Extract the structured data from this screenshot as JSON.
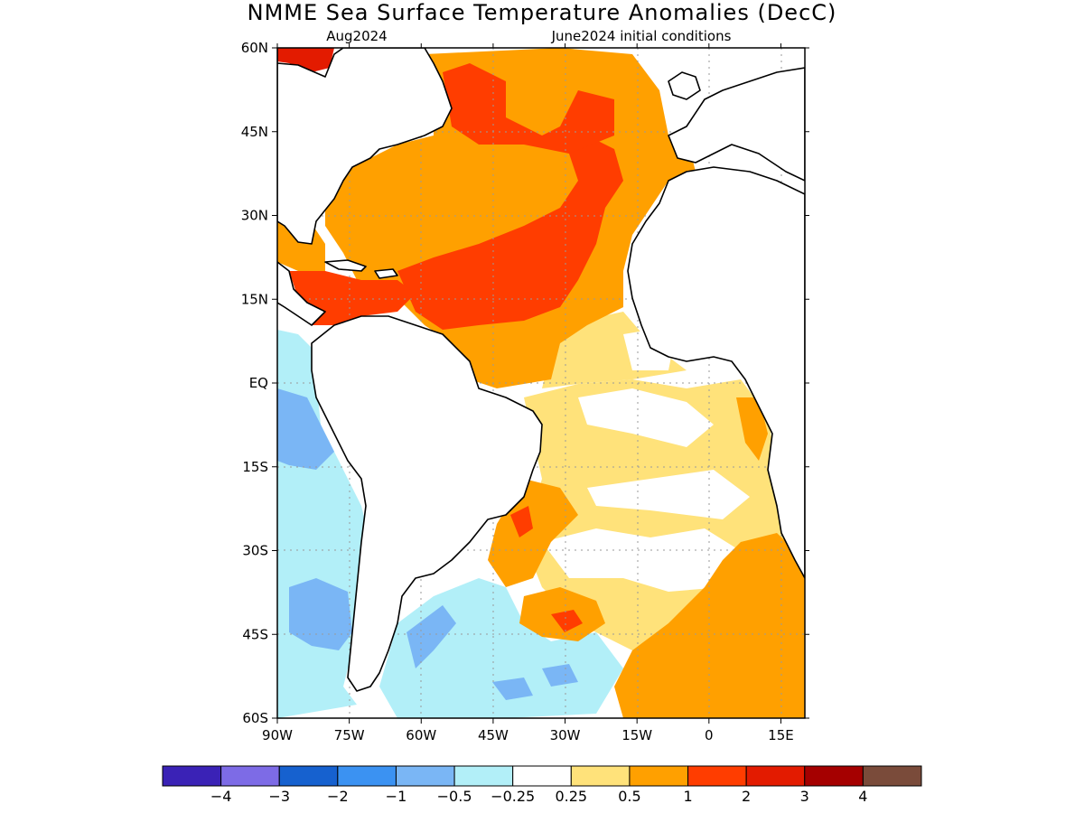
{
  "title": "NMME Sea Surface Temperature Anomalies (DecC)",
  "valid_label": "Aug2024",
  "init_label": "June2024 initial conditions",
  "axes": {
    "lon_labels": [
      "90W",
      "75W",
      "60W",
      "45W",
      "30W",
      "15W",
      "0",
      "15E"
    ],
    "lat_labels": [
      "60N",
      "45N",
      "30N",
      "15N",
      "EQ",
      "15S",
      "30S",
      "45S",
      "60S"
    ],
    "lon_range": [
      -90,
      20
    ],
    "lat_range": [
      -60,
      60
    ],
    "grid": true
  },
  "legend": {
    "colors": [
      "#3a22b6",
      "#7d6be6",
      "#1661cf",
      "#3b92f2",
      "#7ab6f5",
      "#b2eff8",
      "#ffffff",
      "#ffe27a",
      "#ffa000",
      "#ff3d00",
      "#e31b00",
      "#a50000",
      "#7a4b3a"
    ],
    "labels": [
      "−4",
      "−3",
      "−2",
      "−1",
      "−0.5",
      "−0.25",
      "0.25",
      "0.5",
      "1",
      "2",
      "3",
      "4"
    ]
  }
}
